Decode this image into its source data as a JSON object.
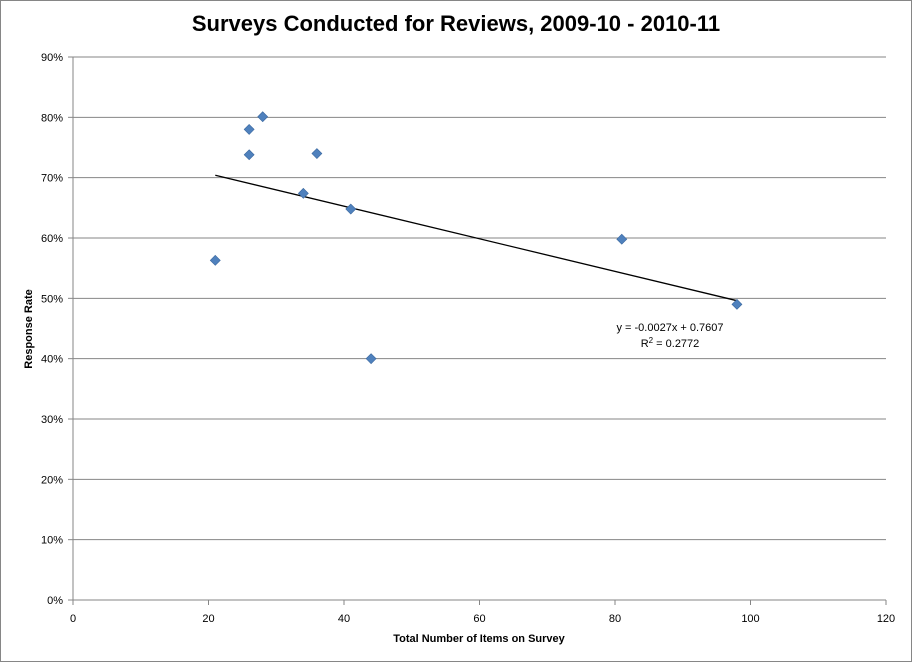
{
  "chart_data": {
    "type": "scatter",
    "title": "Surveys Conducted for Reviews, 2009-10 - 2010-11",
    "xlabel": "Total Number of Items on Survey",
    "ylabel": "Response Rate",
    "xlim": [
      0,
      120
    ],
    "ylim": [
      0,
      0.9
    ],
    "x_ticks": [
      "0",
      "20",
      "40",
      "60",
      "80",
      "100",
      "120"
    ],
    "y_ticks": [
      "0%",
      "10%",
      "20%",
      "30%",
      "40%",
      "50%",
      "60%",
      "70%",
      "80%",
      "90%"
    ],
    "grid": "horizontal",
    "marker_color": "#4F81BD",
    "points": [
      {
        "x": 21,
        "y": 0.563
      },
      {
        "x": 26,
        "y": 0.78
      },
      {
        "x": 26,
        "y": 0.738
      },
      {
        "x": 28,
        "y": 0.801
      },
      {
        "x": 34,
        "y": 0.674
      },
      {
        "x": 36,
        "y": 0.74
      },
      {
        "x": 41,
        "y": 0.648
      },
      {
        "x": 44,
        "y": 0.4
      },
      {
        "x": 81,
        "y": 0.598
      },
      {
        "x": 98,
        "y": 0.49
      }
    ],
    "trendline": {
      "slope": -0.0027,
      "intercept": 0.7607,
      "x_range": [
        21,
        98
      ],
      "equation": "y = -0.0027x + 0.7607",
      "r2_label": "R",
      "r2_value": " = 0.2772"
    }
  }
}
